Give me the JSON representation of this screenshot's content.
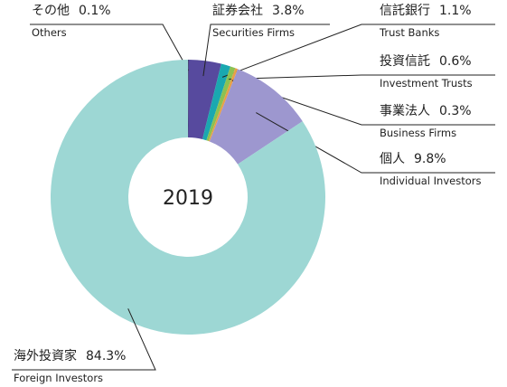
{
  "chart_data": {
    "type": "donut",
    "center_label": "2019",
    "categories": [
      "その他",
      "証券会社",
      "信託銀行",
      "投資信託",
      "事業法人",
      "個人",
      "海外投資家"
    ],
    "categories_en": [
      "Others",
      "Securities Firms",
      "Trust Banks",
      "Investment Trusts",
      "Business Firms",
      "Individual Investors",
      "Foreign Investors"
    ],
    "values": [
      0.1,
      3.8,
      1.1,
      0.6,
      0.3,
      9.8,
      84.3
    ],
    "value_labels": [
      "0.1%",
      "3.8%",
      "1.1%",
      "0.6%",
      "0.3%",
      "9.8%",
      "84.3%"
    ],
    "colors": [
      "#3b3b6e",
      "#574a9e",
      "#1aa8b0",
      "#8cc152",
      "#e8a045",
      "#9d97cf",
      "#9dd7d4"
    ]
  }
}
